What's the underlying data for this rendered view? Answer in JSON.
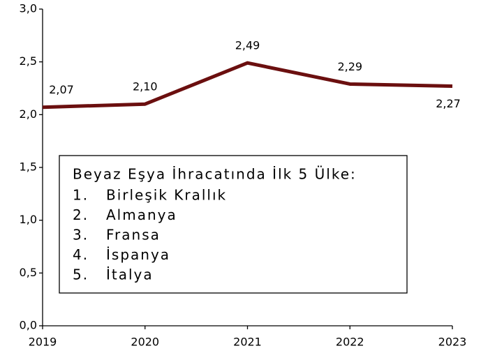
{
  "chart_data": {
    "type": "line",
    "categories": [
      "2019",
      "2020",
      "2021",
      "2022",
      "2023"
    ],
    "series": [
      {
        "color": "#6b0f0f",
        "values": [
          2.07,
          2.1,
          2.49,
          2.29,
          2.27
        ],
        "value_labels": [
          "2,07",
          "2,10",
          "2,49",
          "2,29",
          "2,27"
        ]
      }
    ],
    "ylim": [
      0,
      3
    ],
    "yticks": [
      {
        "value": 0,
        "label": "0,0"
      },
      {
        "value": 0.5,
        "label": "0,5"
      },
      {
        "value": 1,
        "label": "1,0"
      },
      {
        "value": 1.5,
        "label": "1,5"
      },
      {
        "value": 2,
        "label": "2,0"
      },
      {
        "value": 2.5,
        "label": "2,5"
      },
      {
        "value": 3,
        "label": "3,0"
      }
    ],
    "grid": false,
    "annotation": {
      "title": "Beyaz Eşya İhracatında İlk 5 Ülke:",
      "items": [
        {
          "number": "1.",
          "name": "Birleşik Krallık"
        },
        {
          "number": "2.",
          "name": "Almanya"
        },
        {
          "number": "3.",
          "name": "Fransa"
        },
        {
          "number": "4.",
          "name": "İspanya"
        },
        {
          "number": "5.",
          "name": "İtalya"
        }
      ]
    }
  }
}
